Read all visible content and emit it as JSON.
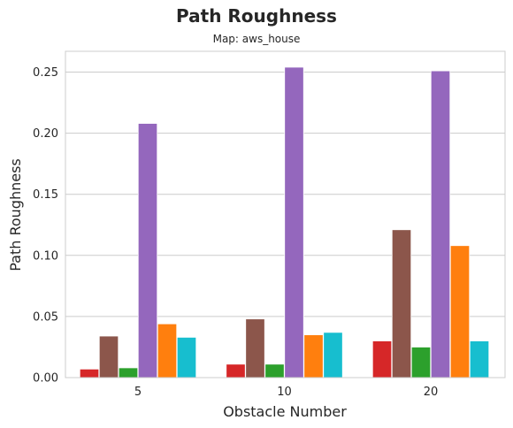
{
  "chart_data": {
    "type": "bar",
    "title": "Path Roughness",
    "subtitle": "Map: aws_house",
    "xlabel": "Obstacle Number",
    "ylabel": "Path Roughness",
    "categories": [
      "5",
      "10",
      "20"
    ],
    "ylim": [
      0,
      0.267
    ],
    "yticks": [
      "0.00",
      "0.05",
      "0.10",
      "0.15",
      "0.20",
      "0.25"
    ],
    "grid": true,
    "legend": "none",
    "series": [
      {
        "color": "#d62728",
        "values": [
          0.007,
          0.011,
          0.03
        ]
      },
      {
        "color": "#8c564b",
        "values": [
          0.034,
          0.048,
          0.121
        ]
      },
      {
        "color": "#2ca02c",
        "values": [
          0.008,
          0.011,
          0.025
        ]
      },
      {
        "color": "#9467bd",
        "values": [
          0.208,
          0.254,
          0.251
        ]
      },
      {
        "color": "#ff7f0e",
        "values": [
          0.044,
          0.035,
          0.108
        ]
      },
      {
        "color": "#17becf",
        "values": [
          0.033,
          0.037,
          0.03
        ]
      }
    ]
  }
}
